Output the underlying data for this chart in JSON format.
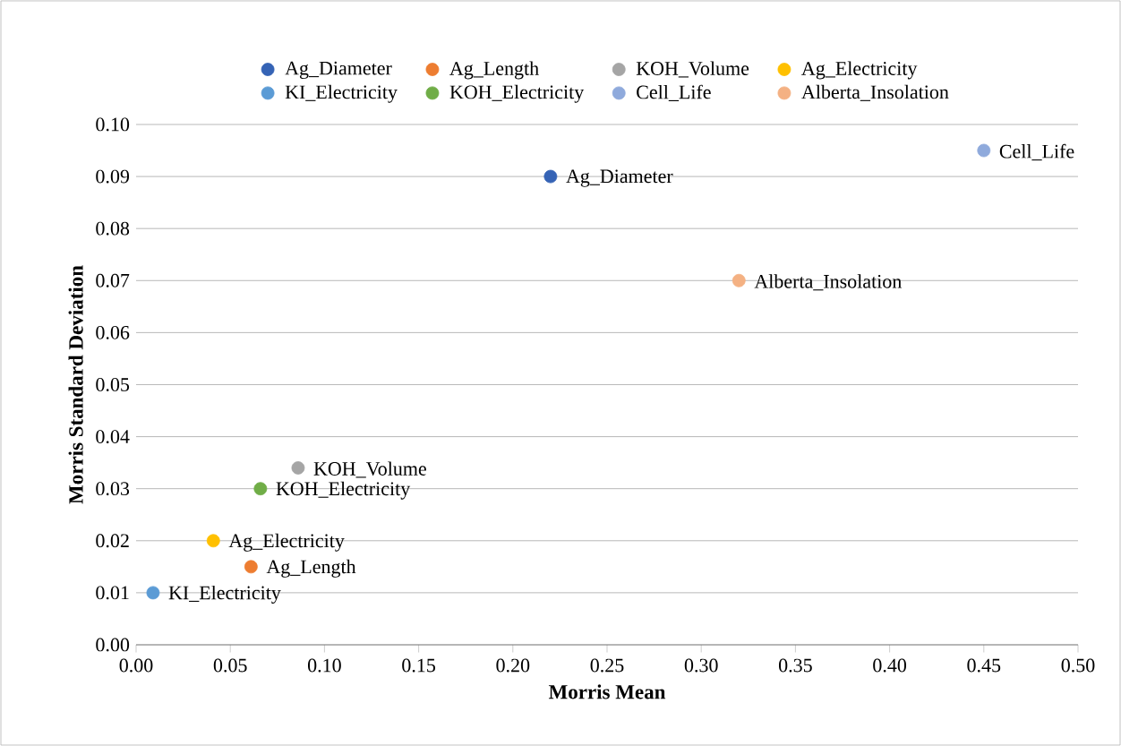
{
  "chart_data": {
    "type": "scatter",
    "xlabel": "Morris Mean",
    "ylabel": "Morris Standard Deviation",
    "xlim": [
      0,
      0.5
    ],
    "ylim": [
      0,
      0.1
    ],
    "xticks": [
      {
        "value": 0,
        "label": "0.00"
      },
      {
        "value": 0.05,
        "label": "0.05"
      },
      {
        "value": 0.1,
        "label": "0.10"
      },
      {
        "value": 0.15,
        "label": "0.15"
      },
      {
        "value": 0.2,
        "label": "0.20"
      },
      {
        "value": 0.25,
        "label": "0.25"
      },
      {
        "value": 0.3,
        "label": "0.30"
      },
      {
        "value": 0.35,
        "label": "0.35"
      },
      {
        "value": 0.4,
        "label": "0.40"
      },
      {
        "value": 0.45,
        "label": "0.45"
      },
      {
        "value": 0.5,
        "label": "0.50"
      }
    ],
    "yticks": [
      {
        "value": 0,
        "label": "0.00"
      },
      {
        "value": 0.01,
        "label": "0.01"
      },
      {
        "value": 0.02,
        "label": "0.02"
      },
      {
        "value": 0.03,
        "label": "0.03"
      },
      {
        "value": 0.04,
        "label": "0.04"
      },
      {
        "value": 0.05,
        "label": "0.05"
      },
      {
        "value": 0.06,
        "label": "0.06"
      },
      {
        "value": 0.07,
        "label": "0.07"
      },
      {
        "value": 0.08,
        "label": "0.08"
      },
      {
        "value": 0.09,
        "label": "0.09"
      },
      {
        "value": 0.1,
        "label": "0.10"
      }
    ],
    "grid": "y",
    "legend": "top",
    "series": [
      {
        "name": "Ag_Diameter",
        "color": "#3563b5",
        "x": [
          0.22
        ],
        "values": [
          0.09
        ]
      },
      {
        "name": "Ag_Length",
        "color": "#ed7d31",
        "x": [
          0.061
        ],
        "values": [
          0.015
        ]
      },
      {
        "name": "KOH_Volume",
        "color": "#a5a5a5",
        "x": [
          0.086
        ],
        "values": [
          0.034
        ]
      },
      {
        "name": "Ag_Electricity",
        "color": "#ffc000",
        "x": [
          0.041
        ],
        "values": [
          0.02
        ]
      },
      {
        "name": "KI_Electricity",
        "color": "#5b9bd5",
        "x": [
          0.009
        ],
        "values": [
          0.01
        ]
      },
      {
        "name": "KOH_Electricity",
        "color": "#70ad47",
        "x": [
          0.066
        ],
        "values": [
          0.03
        ]
      },
      {
        "name": "Cell_Life",
        "color": "#8faadc",
        "x": [
          0.45
        ],
        "values": [
          0.095
        ]
      },
      {
        "name": "Alberta_Insolation",
        "color": "#f4b183",
        "x": [
          0.32
        ],
        "values": [
          0.07
        ]
      }
    ]
  }
}
